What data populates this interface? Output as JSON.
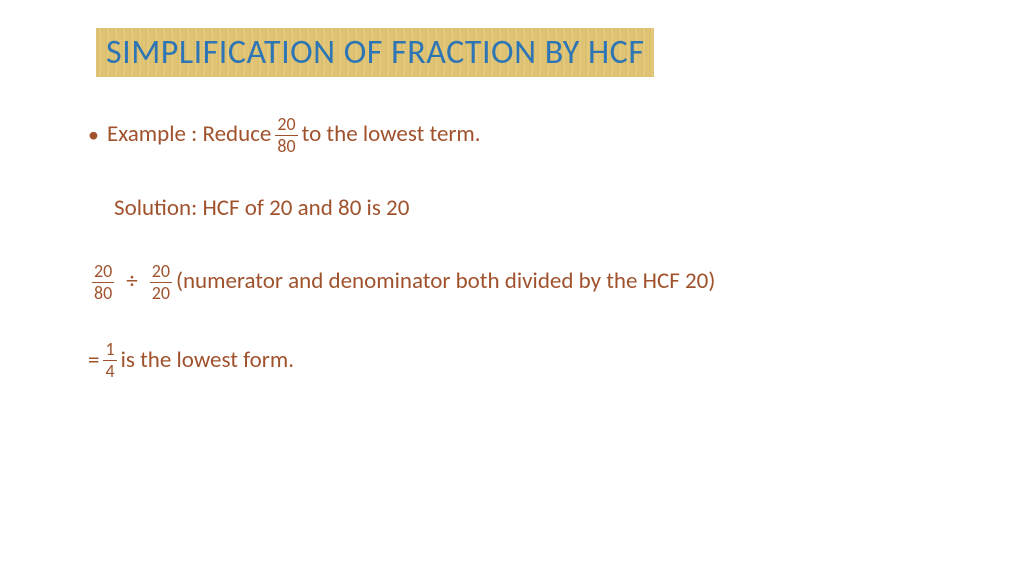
{
  "title": "SIMPLIFICATION OF FRACTION BY HCF",
  "colors": {
    "title_text": "#2e75b6",
    "body_text": "#a0522d",
    "title_bg_base": "#e0c272",
    "background": "#ffffff"
  },
  "typography": {
    "title_fontsize": 34,
    "body_fontsize": 23,
    "fraction_fontsize": 18,
    "font_family": "Calibri"
  },
  "line1": {
    "bullet": "•",
    "pre": "Example :  Reduce ",
    "frac": {
      "num": "20",
      "den": "80"
    },
    "post": " to the lowest term."
  },
  "line2": {
    "text": "Solution: HCF of 20 and 80 is 20"
  },
  "line3": {
    "frac_a": {
      "num": "20",
      "den": "80"
    },
    "op": "÷",
    "frac_b": {
      "num": "20",
      "den": "20"
    },
    "post": "  (numerator and denominator both divided by the HCF 20)"
  },
  "line4": {
    "pre": "=  ",
    "frac": {
      "num": "1",
      "den": "4"
    },
    "post": " is the lowest form."
  }
}
